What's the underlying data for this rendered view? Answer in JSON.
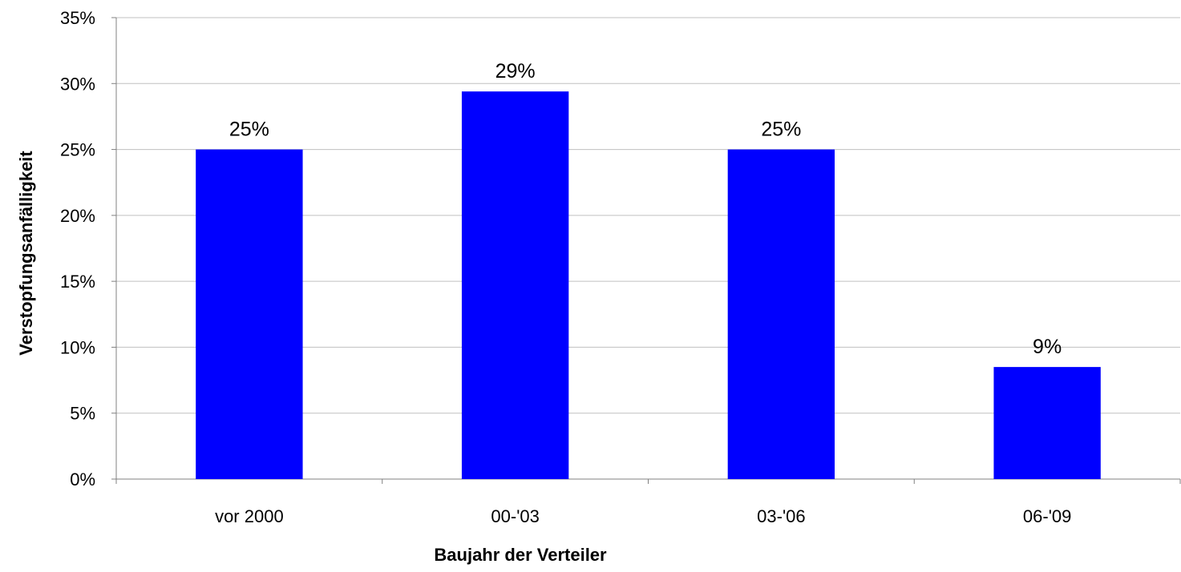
{
  "chart_data": {
    "type": "bar",
    "title": "",
    "xlabel": "Baujahr der Verteiler",
    "ylabel": "Verstopfungsanfälligkeit",
    "categories": [
      "vor 2000",
      "00-'03",
      "03-'06",
      "06-'09"
    ],
    "values": [
      0.25,
      0.294,
      0.25,
      0.085
    ],
    "data_labels": [
      "25%",
      "29%",
      "25%",
      "9%"
    ],
    "ylim": [
      0,
      0.35
    ],
    "yticks": [
      0,
      0.05,
      0.1,
      0.15,
      0.2,
      0.25,
      0.3,
      0.35
    ],
    "ytick_labels": [
      "0%",
      "5%",
      "10%",
      "15%",
      "20%",
      "25%",
      "30%",
      "35%"
    ],
    "grid": true,
    "legend": "none",
    "colors": {
      "bar": "#0000ff",
      "grid": "#c0c0c0",
      "axis": "#808080"
    }
  }
}
